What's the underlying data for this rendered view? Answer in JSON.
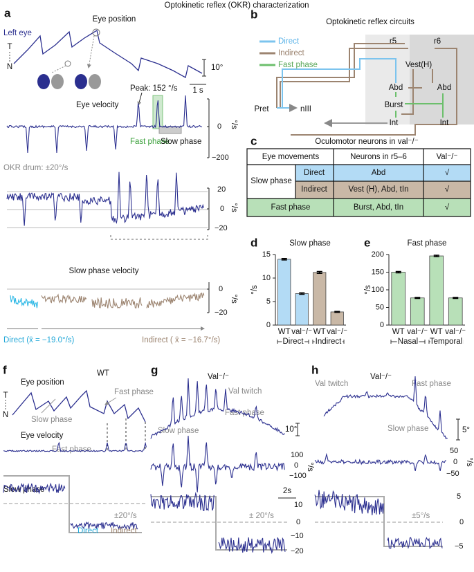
{
  "title": "Optokinetic reflex (OKR) characterization",
  "a": {
    "letter": "a",
    "eye_position": "Eye position",
    "left_eye": "Left eye",
    "t": "T",
    "n": "N",
    "scale_angle": "10°",
    "scale_time": "1 s",
    "peak": "Peak: 152 °/s",
    "eye_velocity": "Eye velocity",
    "fast_phase": "Fast phase",
    "slow_phase": "Slow phase",
    "vel_ticks": [
      "0",
      "−200"
    ],
    "unit": "°/s",
    "drum": "OKR drum: ±20°/s",
    "zoom_ticks": [
      "20",
      "0",
      "−20"
    ],
    "slow_velocity": "Slow phase velocity",
    "slow_ticks": [
      "0",
      "−20"
    ],
    "direct_mean": "Direct (x̄ = −19.0°/s)",
    "indirect_mean": "Indirect ( x̄ = −16.7°/s)"
  },
  "b": {
    "letter": "b",
    "title": "Optokinetic reflex circuits",
    "legend": [
      "Direct",
      "Indirect",
      "Fast phase"
    ],
    "r5": "r5",
    "r6": "r6",
    "nodes": [
      "Vest(H)",
      "Abd",
      "Abd",
      "Burst",
      "Int",
      "Int",
      "Pret",
      "nIII"
    ]
  },
  "c": {
    "letter": "c",
    "title": "Oculomotor neurons in val⁻/⁻",
    "table": {
      "header": [
        "Eye movements",
        "Neurons in r5–6",
        "Val⁻/⁻"
      ],
      "rows": [
        {
          "group": "Slow phase",
          "sub": "Direct",
          "neurons": "Abd",
          "val": "√"
        },
        {
          "sub": "Indirect",
          "neurons": "Vest (H), Abd, tIn",
          "val": "√"
        },
        {
          "group": "Fast phase",
          "neurons": "Burst, Abd, tIn",
          "val": "√"
        }
      ]
    }
  },
  "chart_data": [
    {
      "type": "bar",
      "letter": "d",
      "title": "Slow phase",
      "categories": [
        "WT",
        "val⁻/⁻",
        "WT",
        "val⁻/⁻"
      ],
      "values": [
        14,
        6.7,
        11.2,
        2.8
      ],
      "errors": [
        0.15,
        0.15,
        0.2,
        0.1
      ],
      "colors": [
        "#b3dbf5",
        "#b3dbf5",
        "#c9b8a6",
        "#c9b8a6"
      ],
      "groups": [
        "Direct",
        "Indirect"
      ],
      "y_label": "°/s",
      "ylim": [
        0,
        15
      ],
      "yticks": [
        0,
        5,
        10,
        15
      ]
    },
    {
      "type": "bar",
      "letter": "e",
      "title": "Fast phase",
      "categories": [
        "WT",
        "val⁻/⁻",
        "WT",
        "val⁻/⁻"
      ],
      "values": [
        150,
        77,
        196,
        77
      ],
      "errors": [
        2,
        1.5,
        2,
        1.5
      ],
      "colors": [
        "#b8e0b8",
        "#b8e0b8",
        "#b8e0b8",
        "#b8e0b8"
      ],
      "groups": [
        "Nasal",
        "Temporal"
      ],
      "y_label": "°/s",
      "ylim": [
        0,
        200
      ],
      "yticks": [
        0,
        50,
        100,
        150,
        200
      ]
    }
  ],
  "f": {
    "letter": "f",
    "genotype": "WT",
    "eye_position": "Eye position",
    "t": "T",
    "n": "N",
    "fast_phase": "Fast phase",
    "slow_phase": "Slow phase",
    "eye_velocity": "Eye velocity",
    "fast_phase2": "Fast phase",
    "slow_phase2": "Slow phase",
    "drum": "±20°/s",
    "direct": "Direct",
    "indirect": "Indirect"
  },
  "g": {
    "letter": "g",
    "genotype": "Val⁻/⁻",
    "twitch": "Val twitch",
    "fast_phase": "Fast phase",
    "slow_phase": "Slow phase",
    "scale_angle": "10°",
    "vel_ticks": [
      "100",
      "0",
      "−100"
    ],
    "unit": "°/s",
    "scale_time": "2s",
    "drum": "± 20°/s",
    "slow_ticks": [
      "10",
      "0",
      "−10",
      "−20"
    ]
  },
  "h": {
    "letter": "h",
    "genotype": "Val⁻/⁻",
    "twitch": "Val twitch",
    "fast_phase": "Fast phase",
    "slow_phase": "Slow phase",
    "scale_angle": "5°",
    "vel_ticks": [
      "50",
      "0",
      "−50"
    ],
    "unit": "°/s",
    "drum": "±5°/s",
    "slow_ticks": [
      "5",
      "0",
      "−5"
    ]
  }
}
